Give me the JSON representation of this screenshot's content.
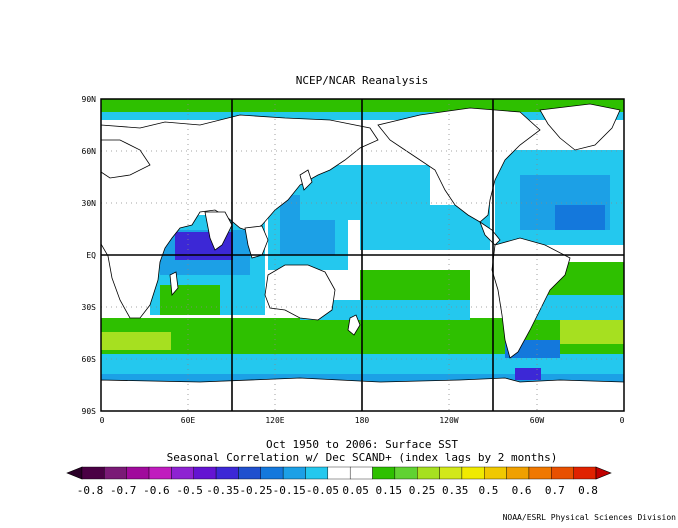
{
  "title": "NCEP/NCAR Reanalysis",
  "lat_labels": [
    "90N",
    "60N",
    "30N",
    "EQ",
    "30S",
    "60S",
    "90S"
  ],
  "lon_labels": [
    "0",
    "60E",
    "120E",
    "180",
    "120W",
    "60W",
    "0"
  ],
  "caption_line1": "Oct 1950 to 2006: Surface SST",
  "caption_line2": "Seasonal Correlation w/ Dec SCAND+ (index lags by 2 months)",
  "credit": "NOAA/ESRL Physical Sciences Division",
  "colorbar": {
    "labels": [
      "-0.8",
      "-0.7",
      "-0.6",
      "-0.5",
      "-0.35",
      "-0.25",
      "-0.15",
      "-0.05",
      "0.05",
      "0.15",
      "0.25",
      "0.35",
      "0.5",
      "0.6",
      "0.7",
      "0.8"
    ],
    "colors": [
      "#4a0044",
      "#7a1a76",
      "#a00a9c",
      "#c01cbe",
      "#8e22d2",
      "#6414d2",
      "#3c28d6",
      "#2050ce",
      "#1478dc",
      "#1ca0e6",
      "#24c8ee",
      "#ffffff",
      "#ffffff",
      "#2ec000",
      "#60d232",
      "#a6e020",
      "#d2e81a",
      "#f0ea00",
      "#f0c800",
      "#f0a000",
      "#f07800",
      "#e85000",
      "#e02200"
    ],
    "under_color": "#2a0028",
    "over_color": "#c00000"
  },
  "map_colors": {
    "land": "#ffffff",
    "near_zero": "#ffffff",
    "weak_neg": "#24c8ee",
    "mod_neg": "#1ca0e6",
    "strong_neg": "#1478dc",
    "very_strong_neg": "#3c28d6",
    "weak_pos": "#2ec000",
    "mod_pos": "#a6e020",
    "strong_pos": "#d2e81a"
  }
}
